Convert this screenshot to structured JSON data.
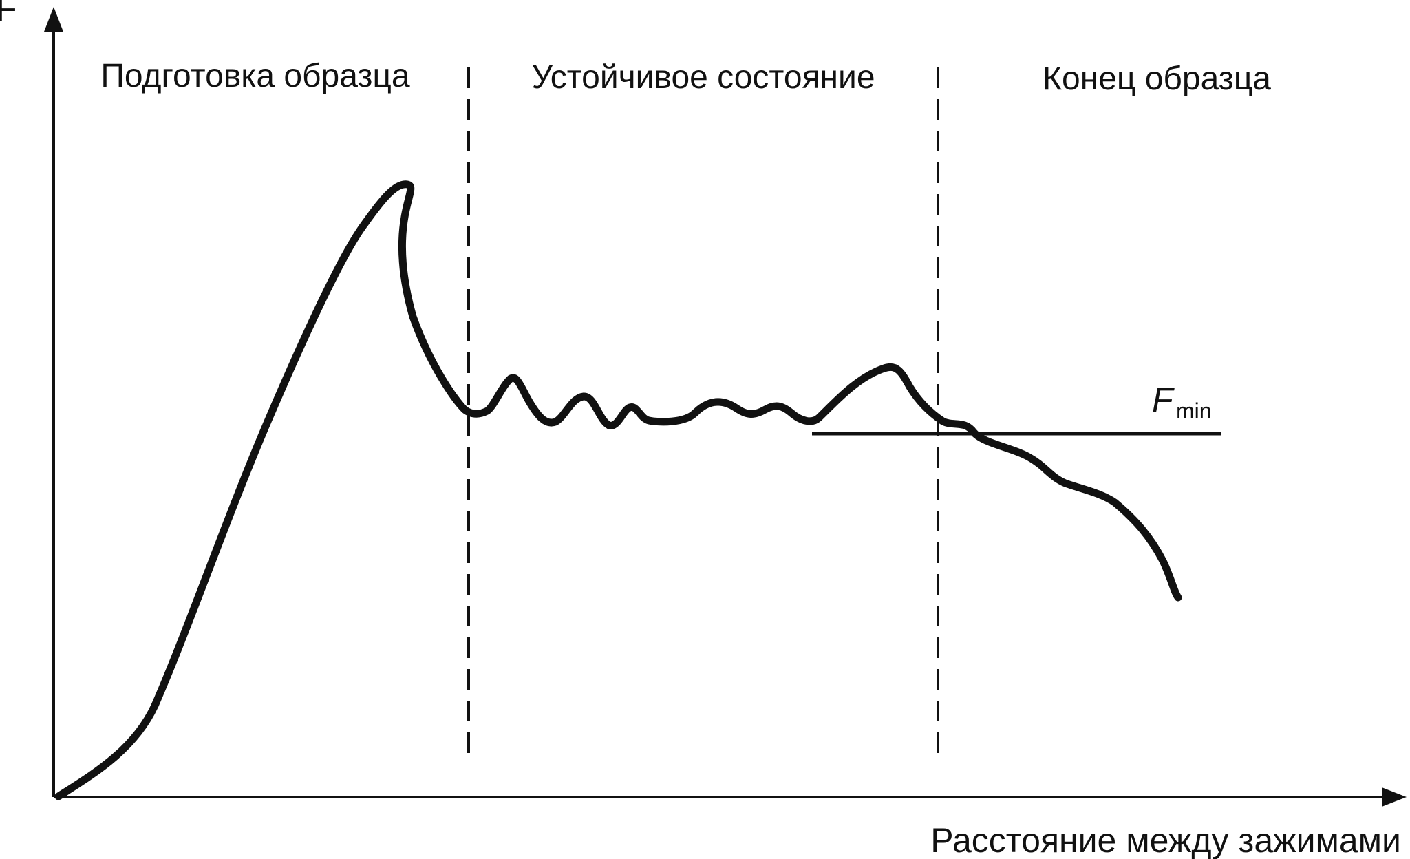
{
  "diagram": {
    "y_axis_label": "F",
    "x_axis_label": "Расстояние между зажимами",
    "zones": [
      {
        "label": "Подготовка образца"
      },
      {
        "label": "Устойчивое состояние"
      },
      {
        "label": "Конец образца"
      }
    ],
    "threshold": {
      "symbol": "F",
      "subscript": "min"
    },
    "colors": {
      "ink": "#111111",
      "background": "#ffffff"
    }
  }
}
